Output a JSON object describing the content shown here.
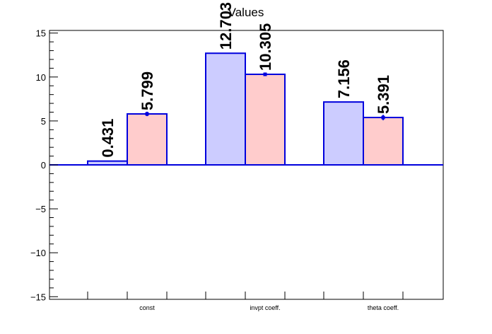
{
  "chart_data": {
    "type": "bar",
    "title": "Values",
    "xlabel": "",
    "ylabel": "",
    "categories": [
      "const",
      "invpt coeff.",
      "theta coeff."
    ],
    "series": [
      {
        "values": [
          0.431,
          12.703,
          7.156
        ],
        "errors": [
          0,
          0,
          0
        ],
        "color": "#ccccff",
        "edge_color": "#0000dd"
      },
      {
        "values": [
          5.799,
          10.305,
          5.391
        ],
        "errors": [
          0.25,
          0.2,
          0.3
        ],
        "color": "#ffcccc",
        "edge_color": "#0000dd"
      }
    ],
    "value_labels": [
      [
        "0.431",
        "12.703",
        "7.156"
      ],
      [
        "5.799",
        "10.305",
        "5.391"
      ]
    ],
    "ylim": [
      -15.3,
      15.3
    ],
    "yticks": [
      -15,
      -10,
      -5,
      0,
      5,
      10,
      15
    ],
    "ytick_labels": [
      "−15",
      "−10",
      "−5",
      "0",
      "5",
      "10",
      "15"
    ],
    "grid": false,
    "legend": "none"
  }
}
